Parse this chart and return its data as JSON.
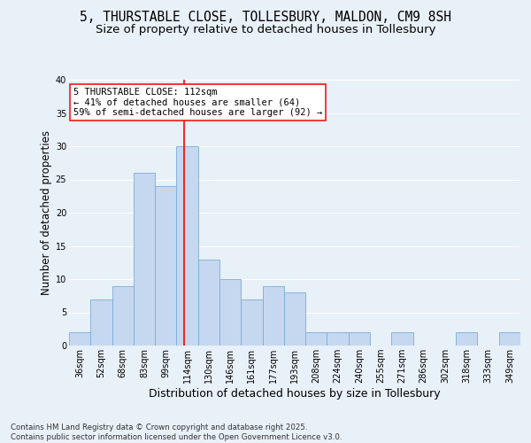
{
  "title_line1": "5, THURSTABLE CLOSE, TOLLESBURY, MALDON, CM9 8SH",
  "title_line2": "Size of property relative to detached houses in Tollesbury",
  "xlabel": "Distribution of detached houses by size in Tollesbury",
  "ylabel": "Number of detached properties",
  "bar_labels": [
    "36sqm",
    "52sqm",
    "68sqm",
    "83sqm",
    "99sqm",
    "114sqm",
    "130sqm",
    "146sqm",
    "161sqm",
    "177sqm",
    "193sqm",
    "208sqm",
    "224sqm",
    "240sqm",
    "255sqm",
    "271sqm",
    "286sqm",
    "302sqm",
    "318sqm",
    "333sqm",
    "349sqm"
  ],
  "bar_values": [
    2,
    7,
    9,
    26,
    24,
    30,
    13,
    10,
    7,
    9,
    8,
    2,
    2,
    2,
    0,
    2,
    0,
    0,
    2,
    0,
    2
  ],
  "bar_color": "#c5d8f0",
  "bar_edgecolor": "#7aadd4",
  "vline_x_index": 4.85,
  "vline_color": "red",
  "annotation_text": "5 THURSTABLE CLOSE: 112sqm\n← 41% of detached houses are smaller (64)\n59% of semi-detached houses are larger (92) →",
  "annotation_box_color": "white",
  "annotation_box_edgecolor": "red",
  "ylim": [
    0,
    40
  ],
  "yticks": [
    0,
    5,
    10,
    15,
    20,
    25,
    30,
    35,
    40
  ],
  "footer_line1": "Contains HM Land Registry data © Crown copyright and database right 2025.",
  "footer_line2": "Contains public sector information licensed under the Open Government Licence v3.0.",
  "background_color": "#e8f0f8",
  "plot_background": "#e8f0f8",
  "grid_color": "#ffffff",
  "title_fontsize": 10.5,
  "subtitle_fontsize": 9.5,
  "tick_fontsize": 7,
  "ylabel_fontsize": 8.5,
  "xlabel_fontsize": 9,
  "annotation_fontsize": 7.5,
  "footer_fontsize": 6.2
}
